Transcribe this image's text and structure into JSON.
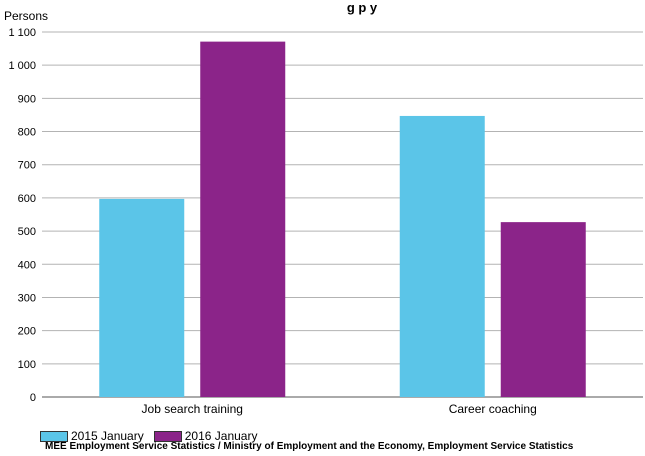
{
  "chart_data": {
    "type": "bar",
    "title": "",
    "title_visible_fragment": "g                p              y",
    "ylabel": "Persons",
    "xlabel": "",
    "categories": [
      "Job search training",
      "Career coaching"
    ],
    "series": [
      {
        "name": "2015 January",
        "color": "#5bc5e8",
        "values": [
          597,
          847
        ]
      },
      {
        "name": "2016 January",
        "color": "#8b2489",
        "values": [
          1071,
          527
        ]
      }
    ],
    "ylim": [
      0,
      1100
    ],
    "yticks": [
      0,
      100,
      200,
      300,
      400,
      500,
      600,
      700,
      800,
      900,
      1000,
      1100
    ],
    "ytick_labels": [
      "0",
      "100",
      "200",
      "300",
      "400",
      "500",
      "600",
      "700",
      "800",
      "900",
      "1 000",
      "1 100"
    ],
    "grid": true,
    "legend_position": "bottom-left"
  },
  "source_text": "MEE Employment Service Statistics / Ministry of Employment and the Economy, Employment Service Statistics"
}
